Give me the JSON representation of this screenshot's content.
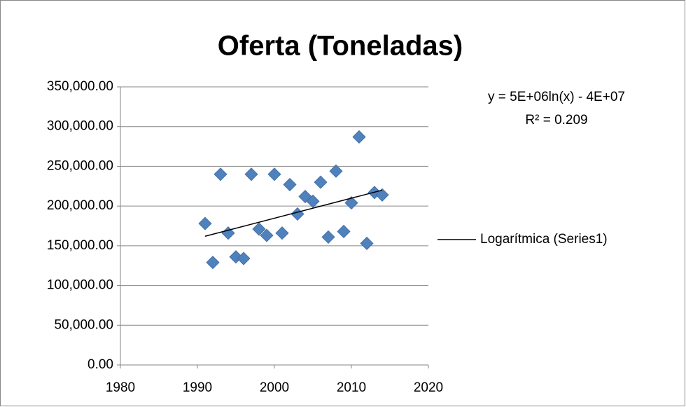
{
  "chart_data": {
    "type": "scatter",
    "title": "Oferta (Toneladas)",
    "x": [
      1991,
      1992,
      1993,
      1994,
      1995,
      1996,
      1997,
      1998,
      1999,
      2000,
      2001,
      2002,
      2003,
      2004,
      2005,
      2006,
      2007,
      2008,
      2009,
      2010,
      2011,
      2012,
      2013,
      2014
    ],
    "series": [
      {
        "name": "Series1",
        "color": "#4f81bd",
        "values": [
          178000,
          129000,
          240000,
          166000,
          136000,
          134000,
          240000,
          171000,
          163000,
          240000,
          166000,
          227000,
          190000,
          212000,
          206000,
          230000,
          161000,
          244000,
          168000,
          204000,
          287000,
          153000,
          217000,
          214000
        ]
      }
    ],
    "trendline": {
      "name": "Logarítmica (Series1)",
      "color": "#000000",
      "x": [
        1991,
        2014
      ],
      "values": [
        162000,
        220000
      ]
    },
    "annotations": [
      "y = 5E+06ln(x) - 4E+07",
      "R² = 0.209"
    ],
    "xlim": [
      1980,
      2020
    ],
    "xticks": [
      1980,
      1990,
      2000,
      2010,
      2020
    ],
    "ylim": [
      0,
      350000
    ],
    "yticks": [
      {
        "value": 0,
        "label": "0.00"
      },
      {
        "value": 50000,
        "label": "50,000.00"
      },
      {
        "value": 100000,
        "label": "100,000.00"
      },
      {
        "value": 150000,
        "label": "150,000.00"
      },
      {
        "value": 200000,
        "label": "200,000.00"
      },
      {
        "value": 250000,
        "label": "250,000.00"
      },
      {
        "value": 300000,
        "label": "300,000.00"
      },
      {
        "value": 350000,
        "label": "350,000.00"
      }
    ],
    "grid": true
  }
}
